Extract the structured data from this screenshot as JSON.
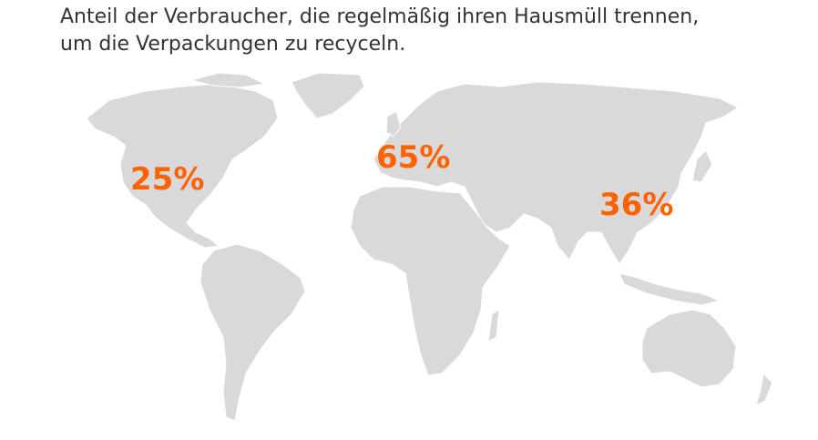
{
  "title": [
    "Anteil der Verbraucher, die regelmäßig ihren Hausmüll trennen,",
    "um die Verpackungen zu recyceln."
  ],
  "labels": [
    "25%",
    "65%",
    "36%"
  ]
}
